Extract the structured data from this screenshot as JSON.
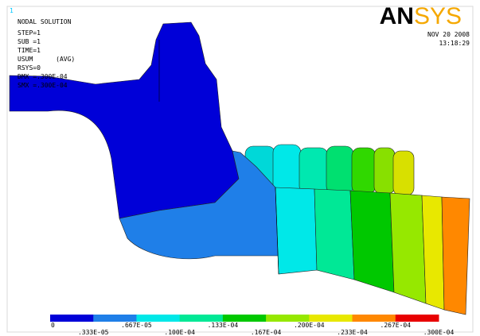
{
  "window_number": "1",
  "header": {
    "title": "NODAL SOLUTION",
    "lines": [
      "STEP=1",
      "SUB =1",
      "TIME=1",
      "USUM      (AVG)",
      "RSYS=0",
      "DMX =.300E-04",
      "SMX =.300E-04"
    ]
  },
  "logo": {
    "left": "AN",
    "right": "SYS"
  },
  "date": "NOV 20 2008",
  "time": "13:18:29",
  "legend": {
    "colors": [
      "#0000d8",
      "#1f7fe8",
      "#00e8e8",
      "#00e896",
      "#00c800",
      "#96e800",
      "#e8e800",
      "#ff8800",
      "#e80000"
    ],
    "labels": [
      "0",
      ".333E-05",
      ".667E-05",
      ".100E-04",
      ".133E-04",
      ".167E-04",
      ".200E-04",
      ".233E-04",
      ".267E-04",
      ".300E-04"
    ]
  }
}
